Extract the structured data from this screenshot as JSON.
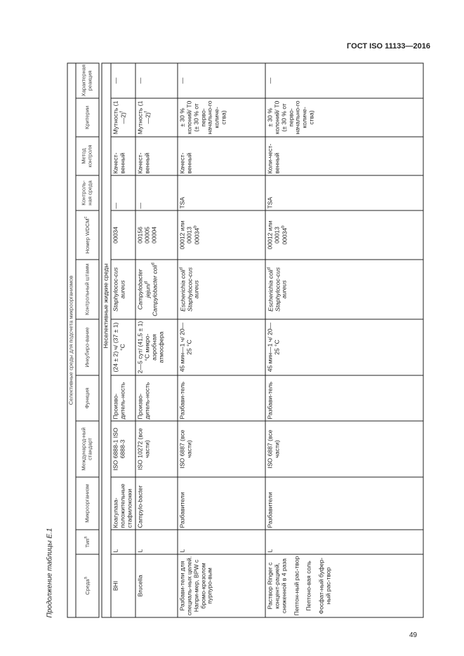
{
  "doc_header": "ГОСТ ISO 11133—2016",
  "page_number": "49",
  "caption": "Продолжение таблицы Е.1",
  "group_header": "Селективные среды для подсчета микроорганизмов",
  "columns": [
    "Среда",
    "Тип",
    "Микроорганизм",
    "Международ-ный стандарт",
    "Функция",
    "Инкубиро-вание",
    "Контрольный штамм",
    "Номер WDCM",
    "Контроль-ная среда",
    "Метод контроля",
    "Критерии",
    "Характерная реакция"
  ],
  "column_sups": [
    "a",
    "a",
    "",
    "",
    "",
    "",
    "",
    "c",
    "",
    "",
    "",
    ""
  ],
  "section": "Неселективные жидкие среды",
  "rows": [
    {
      "medium": [
        "BHI"
      ],
      "type": "L",
      "organism": "Коагулаза-положительные стафилококки",
      "standard": "ISO 6888-1 ISO 6888-3",
      "function": "Произво-дитель-ность",
      "incubation": "(24 ± 2) ч/ (37 ± 1) °С",
      "strain": [
        [
          "Staphylococ-cus aureus",
          ""
        ]
      ],
      "wdcm": [
        [
          "00034",
          ""
        ]
      ],
      "control_medium": "—",
      "method": "Качест-венный",
      "criteria": "Мутность (1—2)",
      "criteria_sup": "f",
      "reaction": "—"
    },
    {
      "medium": [
        "Brucella"
      ],
      "type": "L",
      "organism": "Campylo-bacter",
      "standard": "ISO 10272 (все части)",
      "function": "Произво-дитель-ность",
      "incubation": "2—5 сут/ (41,5 ± 1) °С микро-аэробная атмосфера",
      "strain": [
        [
          "Campylobacter jejuni",
          "d"
        ],
        [
          "Campylobacter coli",
          "d"
        ]
      ],
      "wdcm": [
        [
          "00156",
          ""
        ],
        [
          "00005",
          ""
        ],
        [
          "00004",
          ""
        ]
      ],
      "control_medium": "—",
      "method": "Качест-венный",
      "criteria": "Мутность (1—2)",
      "criteria_sup": "f",
      "reaction": "—"
    },
    {
      "medium": [
        "Разбави-тели для специаль-ных целей. Напри-мер, BPW с бромо-крезолом пурпуро-вым"
      ],
      "type": "L",
      "organism": "Разбавители",
      "standard": "ISO 6887 (все части)",
      "function": "Разбави-тель",
      "incubation": "45 мин—1 ч/ 20—25 °С",
      "strain": [
        [
          "Escherichia coli",
          "d"
        ],
        [
          "Staphylococ-cus aureus",
          ""
        ]
      ],
      "wdcm": [
        [
          "00012 или 00013",
          ""
        ],
        [
          "00034",
          "b"
        ]
      ],
      "control_medium": "TSA",
      "method": "Качест-венный",
      "criteria": "± 30 % колоний/ T0 (± 30 % от перво-начально-го количе-ства)",
      "criteria_sup": "",
      "reaction": "—"
    },
    {
      "medium": [
        "Раствор Ringer с концент-рацией, сниженной в 4 раза",
        "Пептон-ный рас-твор",
        "Пептоно-вая соль",
        "Фосфат-ный буфер-ный рас-твор"
      ],
      "type": "L",
      "organism": "Разбавители",
      "standard": "ISO 6887 (все части)",
      "function": "Разбави-тель",
      "incubation": "45 мин—1 ч/ 20—25 °С",
      "strain": [
        [
          "Escherichia coli",
          "d"
        ],
        [
          "Staphylococ-cus aureus",
          ""
        ]
      ],
      "wdcm": [
        [
          "00012 или 00013",
          ""
        ],
        [
          "00034",
          "b"
        ]
      ],
      "control_medium": "TSA",
      "method": "Коли-чест-венный",
      "criteria": "± 30 % колоний/ T0 (± 30 % от перво-начально-го количе-ства)",
      "criteria_sup": "",
      "reaction": "—"
    }
  ]
}
